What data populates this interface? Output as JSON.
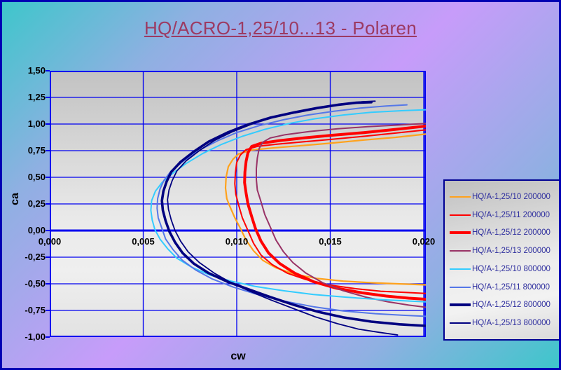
{
  "title": "HQ/ACRO-1,25/10...13 - Polaren",
  "axes": {
    "x_title": "cw",
    "y_title": "ca",
    "x_ticks": [
      {
        "v": 0.0,
        "label": "0,000"
      },
      {
        "v": 0.005,
        "label": "0,005"
      },
      {
        "v": 0.01,
        "label": "0,010"
      },
      {
        "v": 0.015,
        "label": "0,015"
      },
      {
        "v": 0.02,
        "label": "0,020"
      }
    ],
    "y_ticks": [
      {
        "v": 1.5,
        "label": "1,50"
      },
      {
        "v": 1.25,
        "label": "1,25"
      },
      {
        "v": 1.0,
        "label": "1,00"
      },
      {
        "v": 0.75,
        "label": "0,75"
      },
      {
        "v": 0.5,
        "label": "0,50"
      },
      {
        "v": 0.25,
        "label": "0,25"
      },
      {
        "v": 0.0,
        "label": "0,00"
      },
      {
        "v": -0.25,
        "label": "-0,25"
      },
      {
        "v": -0.5,
        "label": "-0,50"
      },
      {
        "v": -0.75,
        "label": "-0,75"
      },
      {
        "v": -1.0,
        "label": "-1,00"
      }
    ]
  },
  "style": {
    "grid_color": "#0000F0",
    "zero_axis_color": "#0000F0",
    "plot_border_color": "#0000F0",
    "title_color": "#9C3A62",
    "legend_text_color": "#2E2E9E",
    "background_cyan": "#3EC6CB",
    "background_purple": "#C79CFA"
  },
  "chart_data": {
    "type": "line",
    "title": "HQ/ACRO-1,25/10...13 - Polaren",
    "xlabel": "cw",
    "ylabel": "ca",
    "xlim": [
      0.0,
      0.0201
    ],
    "ylim": [
      -1.0,
      1.5
    ],
    "x_major_unit": 0.005,
    "y_major_unit": 0.25,
    "grid": true,
    "legend_position": "right",
    "series": [
      {
        "name": "HQ/A-1,25/10 200000",
        "color": "#FFA21C",
        "width": 2.2,
        "points": [
          [
            0.0201,
            0.905
          ],
          [
            0.0185,
            0.875
          ],
          [
            0.0168,
            0.85
          ],
          [
            0.015,
            0.82
          ],
          [
            0.0133,
            0.795
          ],
          [
            0.0119,
            0.775
          ],
          [
            0.0108,
            0.755
          ],
          [
            0.0101,
            0.72
          ],
          [
            0.0098,
            0.67
          ],
          [
            0.00955,
            0.6
          ],
          [
            0.00943,
            0.5
          ],
          [
            0.0094,
            0.4
          ],
          [
            0.00947,
            0.3
          ],
          [
            0.0096,
            0.24
          ],
          [
            0.0099,
            0.12
          ],
          [
            0.0102,
            0.02
          ],
          [
            0.0105,
            -0.09
          ],
          [
            0.0109,
            -0.19
          ],
          [
            0.0114,
            -0.28
          ],
          [
            0.0121,
            -0.35
          ],
          [
            0.0131,
            -0.41
          ],
          [
            0.0143,
            -0.45
          ],
          [
            0.0157,
            -0.475
          ],
          [
            0.0172,
            -0.49
          ],
          [
            0.0186,
            -0.5
          ],
          [
            0.0201,
            -0.51
          ]
        ]
      },
      {
        "name": "HQ/A-1,25/11 200000",
        "color": "#FF0000",
        "width": 2,
        "points": [
          [
            0.0201,
            0.945
          ],
          [
            0.0185,
            0.915
          ],
          [
            0.0168,
            0.885
          ],
          [
            0.015,
            0.855
          ],
          [
            0.0134,
            0.83
          ],
          [
            0.0121,
            0.81
          ],
          [
            0.0111,
            0.79
          ],
          [
            0.0105,
            0.76
          ],
          [
            0.0102,
            0.71
          ],
          [
            0.01,
            0.64
          ],
          [
            0.00993,
            0.54
          ],
          [
            0.0099,
            0.44
          ],
          [
            0.00995,
            0.34
          ],
          [
            0.0101,
            0.24
          ],
          [
            0.0103,
            0.12
          ],
          [
            0.0106,
            0.0
          ],
          [
            0.0109,
            -0.12
          ],
          [
            0.0113,
            -0.23
          ],
          [
            0.0119,
            -0.32
          ],
          [
            0.0127,
            -0.4
          ],
          [
            0.0137,
            -0.46
          ],
          [
            0.0149,
            -0.51
          ],
          [
            0.0163,
            -0.545
          ],
          [
            0.0177,
            -0.57
          ],
          [
            0.019,
            -0.58
          ],
          [
            0.0201,
            -0.59
          ]
        ]
      },
      {
        "name": "HQ/A-1,25/12 200000",
        "color": "#FF0000",
        "width": 4,
        "points": [
          [
            0.0201,
            0.98
          ],
          [
            0.0185,
            0.95
          ],
          [
            0.0168,
            0.92
          ],
          [
            0.0151,
            0.895
          ],
          [
            0.0136,
            0.87
          ],
          [
            0.0123,
            0.845
          ],
          [
            0.0113,
            0.82
          ],
          [
            0.0108,
            0.79
          ],
          [
            0.0106,
            0.73
          ],
          [
            0.0105,
            0.65
          ],
          [
            0.01044,
            0.55
          ],
          [
            0.01042,
            0.45
          ],
          [
            0.0105,
            0.35
          ],
          [
            0.0106,
            0.25
          ],
          [
            0.0108,
            0.13
          ],
          [
            0.011,
            0.02
          ],
          [
            0.0113,
            -0.1
          ],
          [
            0.0117,
            -0.21
          ],
          [
            0.0123,
            -0.31
          ],
          [
            0.0131,
            -0.4
          ],
          [
            0.0141,
            -0.48
          ],
          [
            0.0153,
            -0.54
          ],
          [
            0.0167,
            -0.585
          ],
          [
            0.018,
            -0.615
          ],
          [
            0.0192,
            -0.635
          ],
          [
            0.0201,
            -0.645
          ]
        ]
      },
      {
        "name": "HQ/A-1,25/13 200000",
        "color": "#993366",
        "width": 2,
        "points": [
          [
            0.0201,
            1.005
          ],
          [
            0.0186,
            0.99
          ],
          [
            0.017,
            0.975
          ],
          [
            0.0154,
            0.955
          ],
          [
            0.0139,
            0.93
          ],
          [
            0.0126,
            0.9
          ],
          [
            0.0118,
            0.87
          ],
          [
            0.0114,
            0.83
          ],
          [
            0.0112,
            0.77
          ],
          [
            0.0111,
            0.68
          ],
          [
            0.01105,
            0.58
          ],
          [
            0.01105,
            0.48
          ],
          [
            0.0111,
            0.38
          ],
          [
            0.0113,
            0.27
          ],
          [
            0.0115,
            0.15
          ],
          [
            0.0118,
            0.03
          ],
          [
            0.0121,
            -0.09
          ],
          [
            0.0125,
            -0.2
          ],
          [
            0.013,
            -0.3
          ],
          [
            0.0137,
            -0.4
          ],
          [
            0.0146,
            -0.49
          ],
          [
            0.0157,
            -0.565
          ],
          [
            0.0169,
            -0.625
          ],
          [
            0.0181,
            -0.67
          ],
          [
            0.0192,
            -0.7
          ],
          [
            0.0201,
            -0.72
          ]
        ]
      },
      {
        "name": "HQ/A-1,25/10 800000",
        "color": "#33CCFF",
        "width": 2,
        "points": [
          [
            0.0202,
            1.135
          ],
          [
            0.0188,
            1.125
          ],
          [
            0.0172,
            1.11
          ],
          [
            0.0157,
            1.085
          ],
          [
            0.0142,
            1.05
          ],
          [
            0.0128,
            1.005
          ],
          [
            0.0115,
            0.95
          ],
          [
            0.0103,
            0.885
          ],
          [
            0.0092,
            0.81
          ],
          [
            0.0082,
            0.725
          ],
          [
            0.0073,
            0.63
          ],
          [
            0.0066,
            0.54
          ],
          [
            0.006,
            0.45
          ],
          [
            0.00565,
            0.37
          ],
          [
            0.00545,
            0.28
          ],
          [
            0.00541,
            0.19
          ],
          [
            0.00548,
            0.1
          ],
          [
            0.00562,
            0.01
          ],
          [
            0.0059,
            -0.08
          ],
          [
            0.0063,
            -0.17
          ],
          [
            0.0068,
            -0.26
          ],
          [
            0.0076,
            -0.345
          ],
          [
            0.0086,
            -0.42
          ],
          [
            0.0097,
            -0.475
          ],
          [
            0.011,
            -0.525
          ],
          [
            0.0125,
            -0.565
          ],
          [
            0.0141,
            -0.6
          ],
          [
            0.0158,
            -0.625
          ],
          [
            0.0178,
            -0.65
          ],
          [
            0.0201,
            -0.67
          ]
        ]
      },
      {
        "name": "HQ/A-1,25/11 800000",
        "color": "#5577E8",
        "width": 2,
        "points": [
          [
            0.0191,
            1.18
          ],
          [
            0.018,
            1.17
          ],
          [
            0.0166,
            1.15
          ],
          [
            0.0152,
            1.12
          ],
          [
            0.0138,
            1.085
          ],
          [
            0.0125,
            1.04
          ],
          [
            0.0112,
            0.985
          ],
          [
            0.01,
            0.92
          ],
          [
            0.009,
            0.845
          ],
          [
            0.008,
            0.755
          ],
          [
            0.0072,
            0.66
          ],
          [
            0.0065,
            0.56
          ],
          [
            0.0061,
            0.47
          ],
          [
            0.0059,
            0.39
          ],
          [
            0.00577,
            0.3
          ],
          [
            0.00574,
            0.21
          ],
          [
            0.0058,
            0.12
          ],
          [
            0.006,
            0.02
          ],
          [
            0.0062,
            -0.08
          ],
          [
            0.0066,
            -0.18
          ],
          [
            0.0071,
            -0.28
          ],
          [
            0.0078,
            -0.37
          ],
          [
            0.0087,
            -0.455
          ],
          [
            0.0098,
            -0.53
          ],
          [
            0.0111,
            -0.6
          ],
          [
            0.0126,
            -0.665
          ],
          [
            0.0141,
            -0.715
          ],
          [
            0.0157,
            -0.755
          ],
          [
            0.0174,
            -0.78
          ],
          [
            0.0188,
            -0.795
          ],
          [
            0.0201,
            -0.805
          ]
        ]
      },
      {
        "name": "HQ/A-1,25/12 800000",
        "color": "#000080",
        "width": 3.6,
        "points": [
          [
            0.0172,
            1.205
          ],
          [
            0.0164,
            1.2
          ],
          [
            0.0154,
            1.18
          ],
          [
            0.0143,
            1.15
          ],
          [
            0.0131,
            1.11
          ],
          [
            0.0118,
            1.06
          ],
          [
            0.0106,
            0.995
          ],
          [
            0.0095,
            0.92
          ],
          [
            0.0085,
            0.835
          ],
          [
            0.0077,
            0.74
          ],
          [
            0.007,
            0.645
          ],
          [
            0.0065,
            0.55
          ],
          [
            0.00625,
            0.46
          ],
          [
            0.00608,
            0.37
          ],
          [
            0.006,
            0.28
          ],
          [
            0.00605,
            0.19
          ],
          [
            0.0062,
            0.09
          ],
          [
            0.0064,
            -0.01
          ],
          [
            0.0067,
            -0.11
          ],
          [
            0.0071,
            -0.21
          ],
          [
            0.0077,
            -0.31
          ],
          [
            0.0085,
            -0.4
          ],
          [
            0.0095,
            -0.48
          ],
          [
            0.0106,
            -0.55
          ],
          [
            0.0118,
            -0.625
          ],
          [
            0.0131,
            -0.7
          ],
          [
            0.0144,
            -0.765
          ],
          [
            0.0157,
            -0.815
          ],
          [
            0.0172,
            -0.855
          ],
          [
            0.0187,
            -0.88
          ],
          [
            0.0201,
            -0.895
          ]
        ]
      },
      {
        "name": "HQ/A-1,25/13 800000",
        "color": "#000080",
        "width": 1.8,
        "points": [
          [
            0.0174,
            1.215
          ],
          [
            0.0167,
            1.21
          ],
          [
            0.0157,
            1.19
          ],
          [
            0.0146,
            1.16
          ],
          [
            0.0134,
            1.12
          ],
          [
            0.0121,
            1.07
          ],
          [
            0.0109,
            1.005
          ],
          [
            0.0098,
            0.93
          ],
          [
            0.0088,
            0.845
          ],
          [
            0.008,
            0.75
          ],
          [
            0.0073,
            0.655
          ],
          [
            0.0068,
            0.56
          ],
          [
            0.00655,
            0.47
          ],
          [
            0.00638,
            0.38
          ],
          [
            0.0063,
            0.29
          ],
          [
            0.00635,
            0.2
          ],
          [
            0.0065,
            0.1
          ],
          [
            0.0067,
            0.0
          ],
          [
            0.007,
            -0.1
          ],
          [
            0.0074,
            -0.2
          ],
          [
            0.008,
            -0.3
          ],
          [
            0.0088,
            -0.4
          ],
          [
            0.0097,
            -0.49
          ],
          [
            0.0107,
            -0.57
          ],
          [
            0.0118,
            -0.65
          ],
          [
            0.013,
            -0.73
          ],
          [
            0.0142,
            -0.81
          ],
          [
            0.0154,
            -0.875
          ],
          [
            0.0165,
            -0.925
          ],
          [
            0.0176,
            -0.955
          ],
          [
            0.0186,
            -0.98
          ]
        ]
      }
    ]
  }
}
